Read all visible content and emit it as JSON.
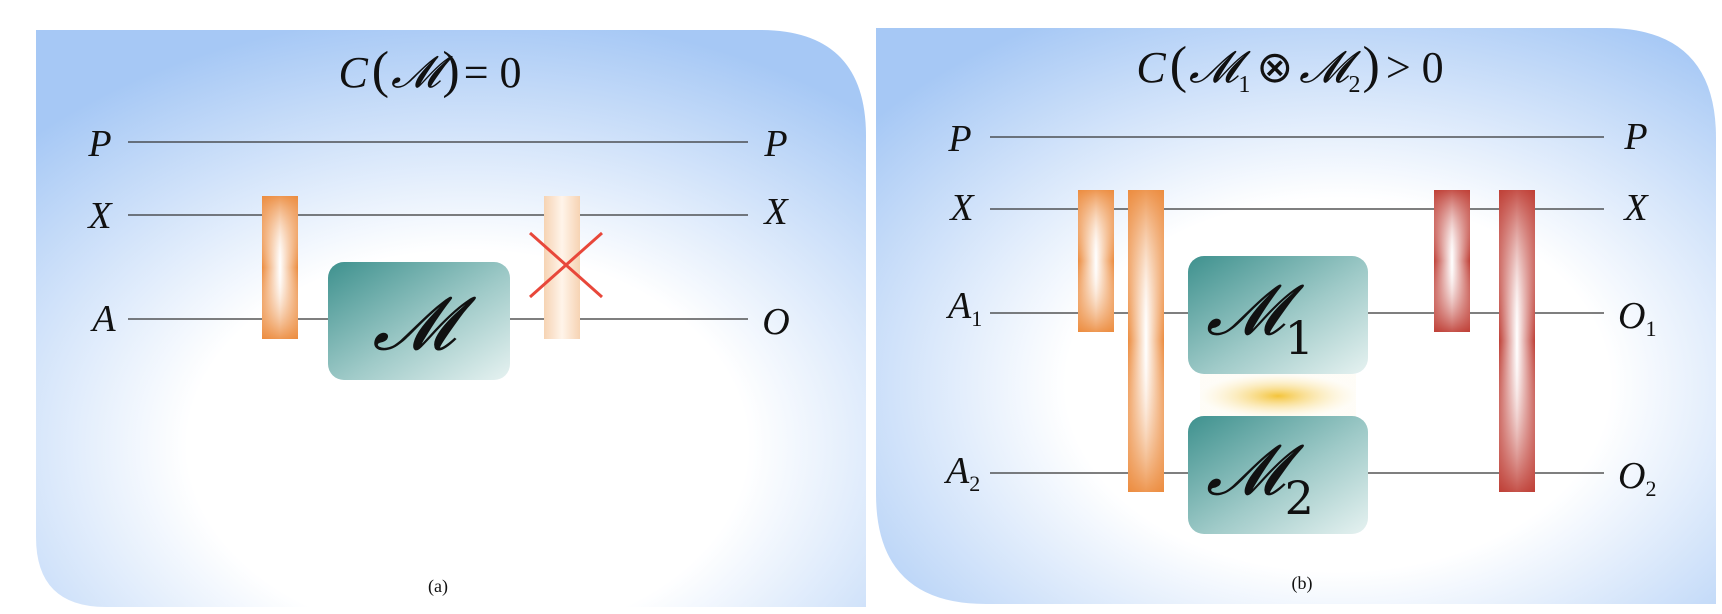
{
  "panel_a": {
    "title_left": "C",
    "title_symbol": "𝓜",
    "title_right": "= 0",
    "wire_labels": {
      "P": "P",
      "X": "X",
      "A": "A",
      "O": "O"
    },
    "box_symbol": "𝓜",
    "caption": "(a)",
    "colors": {
      "background": "#a9cbf6",
      "box": "#4a9896",
      "gate": "#ee9146",
      "forbidden_x": "#e8473a"
    }
  },
  "panel_b": {
    "title_left": "C",
    "title_m": "𝓜",
    "title_sub1": "1",
    "title_otimes": "⊗",
    "title_sub2": "2",
    "title_right": "> 0",
    "wire_labels": {
      "P": "P",
      "X": "X",
      "A1": "A",
      "A1_sub": "1",
      "A2": "A",
      "A2_sub": "2",
      "O1": "O",
      "O1_sub": "1",
      "O2": "O",
      "O2_sub": "2"
    },
    "box1_symbol": "𝓜",
    "box1_sub": "1",
    "box2_symbol": "𝓜",
    "box2_sub": "2",
    "caption": "(b)",
    "colors": {
      "background": "#a9cbf6",
      "box": "#4a9896",
      "gate_orange": "#ee9146",
      "gate_red": "#c0433a",
      "link": "#f5c94a"
    }
  }
}
